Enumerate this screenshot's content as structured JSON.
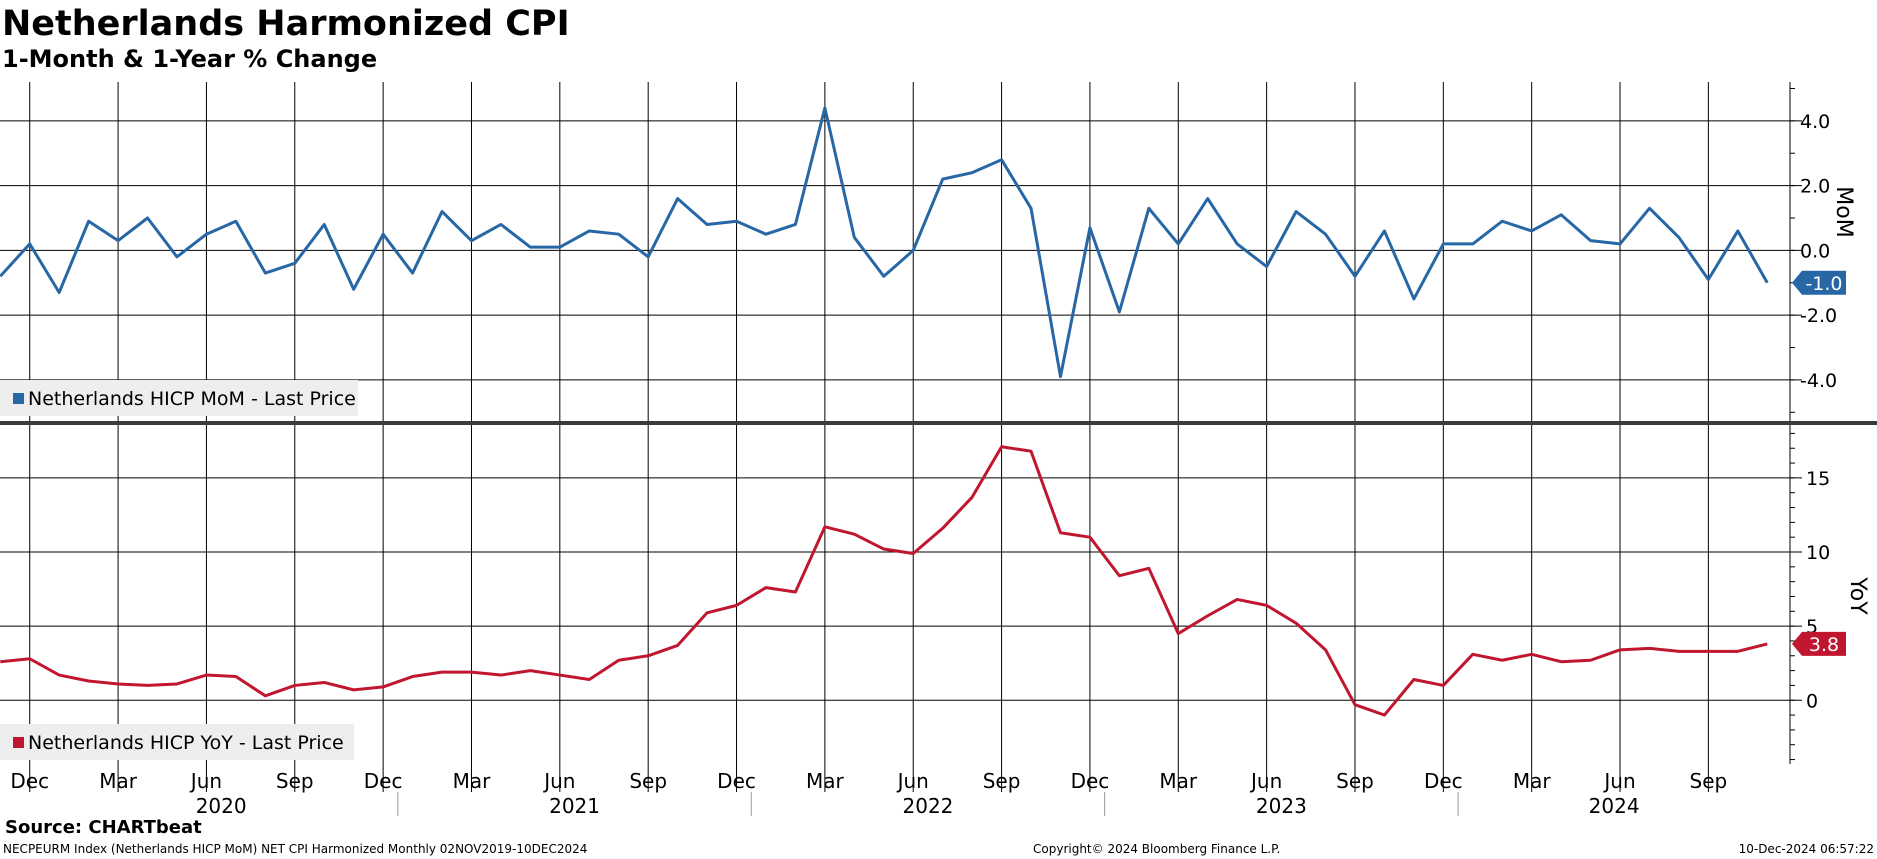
{
  "header": {
    "title": "Netherlands Harmonized CPI",
    "subtitle": "1-Month & 1-Year % Change"
  },
  "footer": {
    "source": "Source: CHARTbeat",
    "description": "NECPEURM Index (Netherlands HICP MoM) NET CPI Harmonized  Monthly 02NOV2019-10DEC2024",
    "copyright": "Copyright© 2024 Bloomberg Finance L.P.",
    "timestamp": "10-Dec-2024 06:57:22"
  },
  "colors": {
    "mom": "#2867a6",
    "yoy": "#c0162f",
    "grid": "#000000",
    "legend_bg": "#eeeeee"
  },
  "chart_data": [
    {
      "type": "line",
      "panel": "top",
      "ylabel": "MoM",
      "ylim": [
        -5.3,
        5.2
      ],
      "yticks": [
        4.0,
        2.0,
        0.0,
        -2.0,
        -4.0
      ],
      "ytick_labels": [
        "4.0",
        "2.0",
        "0.0",
        "-2.0",
        "-4.0"
      ],
      "legend_position": "bottom-left",
      "last_value_label": "-1.0",
      "x_start": "2019-11",
      "series": [
        {
          "name": "Netherlands HICP MoM - Last Price",
          "values": [
            -0.8,
            0.2,
            -1.3,
            0.9,
            0.3,
            1.0,
            -0.2,
            0.5,
            0.9,
            -0.7,
            -0.4,
            0.8,
            -1.2,
            0.5,
            -0.7,
            1.2,
            0.3,
            0.8,
            0.1,
            0.1,
            0.6,
            0.5,
            -0.2,
            1.6,
            0.8,
            0.9,
            0.5,
            0.8,
            4.4,
            0.4,
            -0.8,
            0.0,
            2.2,
            2.4,
            2.8,
            1.3,
            -3.9,
            0.7,
            -1.9,
            1.3,
            0.2,
            1.6,
            0.2,
            -0.5,
            1.2,
            0.5,
            -0.8,
            0.6,
            -1.5,
            0.2,
            0.2,
            0.9,
            0.6,
            1.1,
            0.3,
            0.2,
            1.3,
            0.4,
            -0.9,
            0.6,
            -1.0
          ]
        }
      ]
    },
    {
      "type": "line",
      "panel": "bottom",
      "ylabel": "YoY",
      "ylim": [
        -4.3,
        18.5
      ],
      "yticks": [
        15,
        10,
        5,
        0
      ],
      "ytick_labels": [
        "15",
        "10",
        "5",
        "0"
      ],
      "legend_position": "bottom-left",
      "last_value_label": "3.8",
      "x_start": "2019-11",
      "series": [
        {
          "name": "Netherlands HICP YoY - Last Price",
          "values": [
            2.6,
            2.8,
            1.7,
            1.3,
            1.1,
            1.0,
            1.1,
            1.7,
            1.6,
            0.3,
            1.0,
            1.2,
            0.7,
            0.9,
            1.6,
            1.9,
            1.9,
            1.7,
            2.0,
            1.7,
            1.4,
            2.7,
            3.0,
            3.7,
            5.9,
            6.4,
            7.6,
            7.3,
            11.7,
            11.2,
            10.2,
            9.9,
            11.6,
            13.7,
            17.1,
            16.8,
            11.3,
            11.0,
            8.4,
            8.9,
            4.5,
            5.7,
            6.8,
            6.4,
            5.2,
            3.4,
            -0.3,
            -1.0,
            1.4,
            1.0,
            3.1,
            2.7,
            3.1,
            2.6,
            2.7,
            3.4,
            3.5,
            3.3,
            3.3,
            3.3,
            3.8
          ]
        }
      ]
    },
    {
      "type": "axis",
      "x_axis": {
        "month_ticks": [
          {
            "label": "Dec",
            "index": 1
          },
          {
            "label": "Mar",
            "index": 4
          },
          {
            "label": "Jun",
            "index": 7
          },
          {
            "label": "Sep",
            "index": 10
          },
          {
            "label": "Dec",
            "index": 13
          },
          {
            "label": "Mar",
            "index": 16
          },
          {
            "label": "Jun",
            "index": 19
          },
          {
            "label": "Sep",
            "index": 22
          },
          {
            "label": "Dec",
            "index": 25
          },
          {
            "label": "Mar",
            "index": 28
          },
          {
            "label": "Jun",
            "index": 31
          },
          {
            "label": "Sep",
            "index": 34
          },
          {
            "label": "Dec",
            "index": 37
          },
          {
            "label": "Mar",
            "index": 40
          },
          {
            "label": "Jun",
            "index": 43
          },
          {
            "label": "Sep",
            "index": 46
          },
          {
            "label": "Dec",
            "index": 49
          },
          {
            "label": "Mar",
            "index": 52
          },
          {
            "label": "Jun",
            "index": 55
          },
          {
            "label": "Sep",
            "index": 58
          }
        ],
        "years": [
          {
            "label": "2020",
            "start": 2,
            "end": 14
          },
          {
            "label": "2021",
            "start": 14,
            "end": 26
          },
          {
            "label": "2022",
            "start": 26,
            "end": 38
          },
          {
            "label": "2023",
            "start": 38,
            "end": 50
          },
          {
            "label": "2024",
            "start": 50,
            "end": 60.6
          }
        ]
      }
    }
  ]
}
